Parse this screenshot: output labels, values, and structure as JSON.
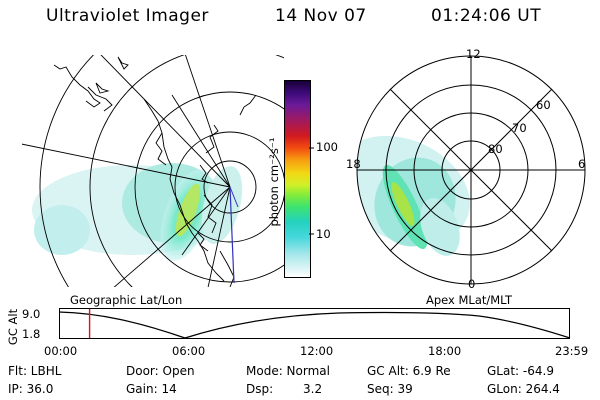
{
  "header": {
    "instrument": "Ultraviolet Imager",
    "date": "14 Nov 07",
    "time": "01:24:06 UT"
  },
  "colorbar": {
    "unit_label": "photon cm⁻²s⁻¹",
    "ticks": [
      "100",
      "10"
    ]
  },
  "polar_plot": {
    "mlt_labels": [
      "12",
      "18",
      "6",
      "0"
    ],
    "mlat_labels": [
      "60",
      "70",
      "80"
    ]
  },
  "panel_labels": {
    "left": "Geographic Lat/Lon",
    "right": "Apex MLat/MLT"
  },
  "altitude_plot": {
    "ylabel": "GC Alt",
    "yticks": [
      "9.0",
      "1.8"
    ],
    "xticks": [
      "00:00",
      "06:00",
      "12:00",
      "18:00",
      "23:59"
    ],
    "current_time_fraction": 0.059
  },
  "info": {
    "filter": "Flt: LBHL",
    "door": "Door: Open",
    "mode": "Mode: Normal",
    "gc_alt": "GC Alt: 6.9 Re",
    "glat": "GLat: -64.9",
    "ip": "IP: 36.0",
    "gain": "Gain: 14",
    "dsp_label": "Dsp:",
    "dsp_value": "3.2",
    "seq": "Seq: 39",
    "glon": "GLon: 264.4"
  },
  "colors": {
    "time_marker": "#e01010",
    "meridian_line": "#3030c0"
  }
}
